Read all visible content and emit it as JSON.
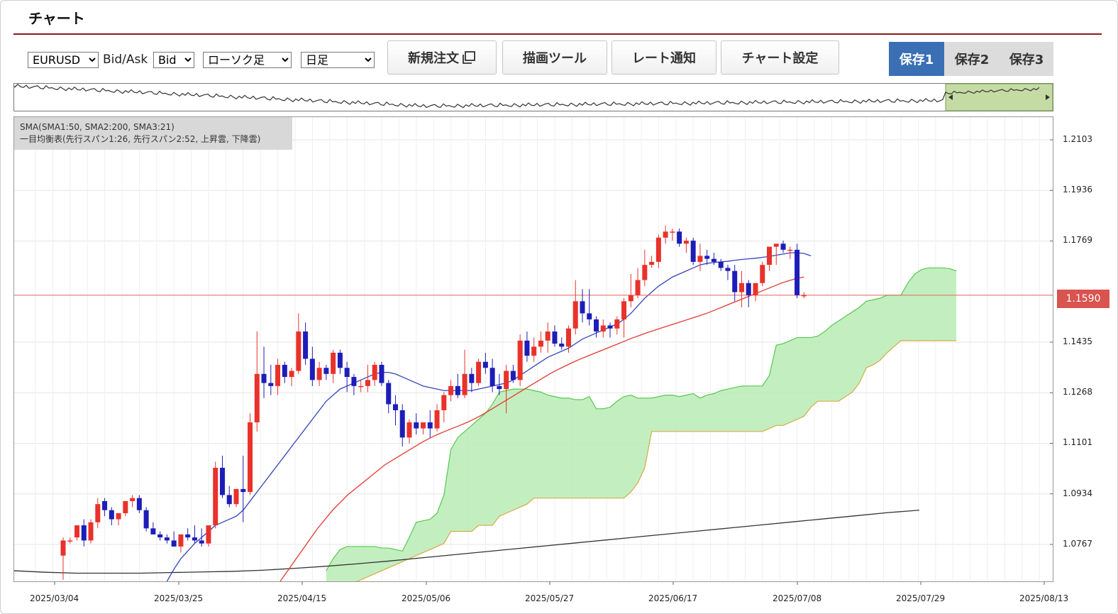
{
  "page": {
    "title": "チャート"
  },
  "toolbar": {
    "symbol": "EURUSD",
    "bidask_label": "Bid/Ask",
    "bidask_value": "Bid",
    "chart_type": "ローソク足",
    "timeframe": "日足",
    "buttons": [
      "新規注文",
      "描画ツール",
      "レート通知",
      "チャート設定"
    ],
    "new_order_icon": "popup-window-icon",
    "saves": [
      "保存1",
      "保存2",
      "保存3"
    ],
    "active_save": 0
  },
  "legend": {
    "line1": "SMA(SMA1:50, SMA2:200, SMA3:21)",
    "line2": "一目均衡表(先行スパン1:26, 先行スパン2:52, 上昇雲, 下降雲)"
  },
  "colors": {
    "up_candle": "#e8322b",
    "down_candle": "#1d1db8",
    "sma21": "#3344bb",
    "sma50": "#e03a30",
    "sma200": "#333333",
    "cloud_fill": "#b8ecb5",
    "span1": "#55c84f",
    "span2": "#d9a842",
    "price_line": "#e56a5e",
    "save_active": "#3a6fb4"
  },
  "chart_data": {
    "type": "candlestick",
    "current_price": "1.1590",
    "y_ticks": [
      "1.2103",
      "1.1936",
      "1.1769",
      "1.1590",
      "1.1435",
      "1.1268",
      "1.1101",
      "1.0934",
      "1.0767"
    ],
    "x_ticks": [
      "2025/03/04",
      "2025/03/25",
      "2025/04/15",
      "2025/05/06",
      "2025/05/27",
      "2025/06/17",
      "2025/07/08",
      "2025/07/29",
      "2025/08/13"
    ],
    "ylim": [
      1.0645,
      1.2178
    ],
    "candles": [
      [
        1.073,
        1.079,
        1.065,
        1.078
      ],
      [
        1.078,
        1.079,
        1.077,
        1.078
      ],
      [
        1.079,
        1.083,
        1.078,
        1.083
      ],
      [
        1.083,
        1.085,
        1.076,
        1.078
      ],
      [
        1.078,
        1.085,
        1.077,
        1.084
      ],
      [
        1.084,
        1.092,
        1.082,
        1.09
      ],
      [
        1.091,
        1.092,
        1.086,
        1.088
      ],
      [
        1.088,
        1.089,
        1.083,
        1.085
      ],
      [
        1.085,
        1.087,
        1.083,
        1.087
      ],
      [
        1.087,
        1.091,
        1.086,
        1.091
      ],
      [
        1.091,
        1.093,
        1.089,
        1.092
      ],
      [
        1.092,
        1.093,
        1.087,
        1.088
      ],
      [
        1.088,
        1.089,
        1.081,
        1.082
      ],
      [
        1.082,
        1.084,
        1.08,
        1.08
      ],
      [
        1.08,
        1.081,
        1.078,
        1.079
      ],
      [
        1.079,
        1.08,
        1.077,
        1.078
      ],
      [
        1.078,
        1.081,
        1.076,
        1.076
      ],
      [
        1.076,
        1.08,
        1.074,
        1.08
      ],
      [
        1.08,
        1.082,
        1.078,
        1.079
      ],
      [
        1.079,
        1.083,
        1.077,
        1.078
      ],
      [
        1.078,
        1.082,
        1.076,
        1.077
      ],
      [
        1.077,
        1.083,
        1.076,
        1.083
      ],
      [
        1.083,
        1.104,
        1.082,
        1.102
      ],
      [
        1.102,
        1.106,
        1.092,
        1.093
      ],
      [
        1.093,
        1.096,
        1.089,
        1.09
      ],
      [
        1.09,
        1.095,
        1.089,
        1.095
      ],
      [
        1.095,
        1.106,
        1.084,
        1.094
      ],
      [
        1.094,
        1.12,
        1.093,
        1.117
      ],
      [
        1.117,
        1.147,
        1.114,
        1.133
      ],
      [
        1.133,
        1.142,
        1.125,
        1.13
      ],
      [
        1.13,
        1.136,
        1.126,
        1.129
      ],
      [
        1.129,
        1.138,
        1.126,
        1.136
      ],
      [
        1.136,
        1.137,
        1.13,
        1.132
      ],
      [
        1.132,
        1.135,
        1.129,
        1.134
      ],
      [
        1.134,
        1.153,
        1.133,
        1.147
      ],
      [
        1.147,
        1.15,
        1.136,
        1.138
      ],
      [
        1.138,
        1.142,
        1.129,
        1.131
      ],
      [
        1.131,
        1.137,
        1.129,
        1.135
      ],
      [
        1.135,
        1.136,
        1.131,
        1.133
      ],
      [
        1.133,
        1.141,
        1.13,
        1.14
      ],
      [
        1.14,
        1.141,
        1.133,
        1.135
      ],
      [
        1.135,
        1.137,
        1.127,
        1.132
      ],
      [
        1.132,
        1.133,
        1.126,
        1.129
      ],
      [
        1.129,
        1.131,
        1.127,
        1.129
      ],
      [
        1.129,
        1.136,
        1.127,
        1.131
      ],
      [
        1.131,
        1.137,
        1.129,
        1.136
      ],
      [
        1.136,
        1.137,
        1.129,
        1.13
      ],
      [
        1.13,
        1.131,
        1.12,
        1.123
      ],
      [
        1.123,
        1.126,
        1.116,
        1.121
      ],
      [
        1.121,
        1.123,
        1.109,
        1.112
      ],
      [
        1.112,
        1.118,
        1.11,
        1.117
      ],
      [
        1.117,
        1.12,
        1.113,
        1.115
      ],
      [
        1.115,
        1.117,
        1.113,
        1.117
      ],
      [
        1.117,
        1.121,
        1.112,
        1.115
      ],
      [
        1.115,
        1.123,
        1.114,
        1.121
      ],
      [
        1.121,
        1.127,
        1.117,
        1.126
      ],
      [
        1.126,
        1.131,
        1.124,
        1.129
      ],
      [
        1.129,
        1.133,
        1.125,
        1.126
      ],
      [
        1.126,
        1.141,
        1.125,
        1.133
      ],
      [
        1.133,
        1.135,
        1.127,
        1.13
      ],
      [
        1.13,
        1.138,
        1.129,
        1.137
      ],
      [
        1.137,
        1.14,
        1.133,
        1.135
      ],
      [
        1.135,
        1.138,
        1.127,
        1.129
      ],
      [
        1.129,
        1.133,
        1.126,
        1.128
      ],
      [
        1.128,
        1.136,
        1.12,
        1.134
      ],
      [
        1.134,
        1.136,
        1.13,
        1.131
      ],
      [
        1.131,
        1.146,
        1.129,
        1.144
      ],
      [
        1.144,
        1.147,
        1.137,
        1.139
      ],
      [
        1.139,
        1.145,
        1.137,
        1.142
      ],
      [
        1.142,
        1.147,
        1.14,
        1.144
      ],
      [
        1.144,
        1.15,
        1.14,
        1.147
      ],
      [
        1.147,
        1.149,
        1.142,
        1.143
      ],
      [
        1.143,
        1.145,
        1.141,
        1.142
      ],
      [
        1.142,
        1.149,
        1.14,
        1.148
      ],
      [
        1.148,
        1.164,
        1.146,
        1.157
      ],
      [
        1.157,
        1.161,
        1.15,
        1.153
      ],
      [
        1.153,
        1.161,
        1.149,
        1.151
      ],
      [
        1.151,
        1.152,
        1.145,
        1.147
      ],
      [
        1.147,
        1.151,
        1.145,
        1.149
      ],
      [
        1.149,
        1.15,
        1.145,
        1.148
      ],
      [
        1.148,
        1.152,
        1.146,
        1.151
      ],
      [
        1.151,
        1.158,
        1.145,
        1.157
      ],
      [
        1.157,
        1.166,
        1.155,
        1.159
      ],
      [
        1.159,
        1.168,
        1.158,
        1.164
      ],
      [
        1.164,
        1.174,
        1.162,
        1.169
      ],
      [
        1.169,
        1.172,
        1.168,
        1.17
      ],
      [
        1.17,
        1.179,
        1.168,
        1.178
      ],
      [
        1.178,
        1.182,
        1.176,
        1.18
      ],
      [
        1.18,
        1.181,
        1.177,
        1.18
      ],
      [
        1.18,
        1.181,
        1.175,
        1.176
      ],
      [
        1.176,
        1.178,
        1.173,
        1.177
      ],
      [
        1.177,
        1.178,
        1.169,
        1.17
      ],
      [
        1.17,
        1.176,
        1.167,
        1.172
      ],
      [
        1.172,
        1.174,
        1.169,
        1.171
      ],
      [
        1.171,
        1.173,
        1.169,
        1.17
      ],
      [
        1.17,
        1.171,
        1.167,
        1.168
      ],
      [
        1.168,
        1.169,
        1.164,
        1.167
      ],
      [
        1.167,
        1.169,
        1.157,
        1.16
      ],
      [
        1.16,
        1.167,
        1.155,
        1.163
      ],
      [
        1.163,
        1.164,
        1.155,
        1.159
      ],
      [
        1.159,
        1.163,
        1.157,
        1.163
      ],
      [
        1.163,
        1.17,
        1.162,
        1.169
      ],
      [
        1.169,
        1.175,
        1.167,
        1.175
      ],
      [
        1.175,
        1.176,
        1.169,
        1.176
      ],
      [
        1.176,
        1.177,
        1.173,
        1.174
      ],
      [
        1.174,
        1.175,
        1.171,
        1.174
      ],
      [
        1.174,
        1.176,
        1.158,
        1.159
      ],
      [
        1.159,
        1.16,
        1.158,
        1.159
      ]
    ],
    "sma21": [
      null,
      null,
      null,
      null,
      null,
      null,
      null,
      null,
      null,
      null,
      null,
      null,
      null,
      null,
      null,
      1.0645,
      1.0685,
      1.072,
      1.0745,
      1.077,
      1.079,
      1.081,
      1.083,
      1.084,
      1.085,
      1.086,
      1.088,
      1.091,
      1.094,
      1.097,
      1.1,
      1.103,
      1.106,
      1.109,
      1.112,
      1.115,
      1.118,
      1.121,
      1.124,
      1.126,
      1.128,
      1.129,
      1.13,
      1.131,
      1.132,
      1.133,
      1.1335,
      1.1335,
      1.133,
      1.132,
      1.131,
      1.13,
      1.129,
      1.1285,
      1.128,
      1.1275,
      1.1275,
      1.1275,
      1.1275,
      1.1275,
      1.128,
      1.1285,
      1.129,
      1.1295,
      1.13,
      1.131,
      1.1325,
      1.134,
      1.1355,
      1.137,
      1.1385,
      1.1395,
      1.1405,
      1.1415,
      1.143,
      1.1445,
      1.1455,
      1.1465,
      1.1475,
      1.1485,
      1.1495,
      1.151,
      1.153,
      1.1555,
      1.158,
      1.16,
      1.162,
      1.1635,
      1.165,
      1.166,
      1.167,
      1.168,
      1.169,
      1.1695,
      1.1698,
      1.17,
      1.1702,
      1.1705,
      1.1708,
      1.171,
      1.1712,
      1.1715,
      1.1718,
      1.1722,
      1.1726,
      1.173,
      1.173,
      1.1728,
      1.172
    ],
    "sma50": {
      "from": 38,
      "start": 1.0645,
      "points": [
        1.0645,
        1.068,
        1.0715,
        1.075,
        1.0785,
        1.082,
        1.085,
        1.088,
        1.0905,
        1.093,
        1.095,
        1.097,
        1.099,
        1.101,
        1.103,
        1.1045,
        1.106,
        1.1075,
        1.109,
        1.1105,
        1.1118,
        1.113,
        1.114,
        1.115,
        1.116,
        1.117,
        1.1182,
        1.1195,
        1.121,
        1.1225,
        1.124,
        1.1255,
        1.127,
        1.1285,
        1.13,
        1.1315,
        1.133,
        1.1343,
        1.1355,
        1.1367,
        1.1378,
        1.1388,
        1.1398,
        1.1408,
        1.1418,
        1.1428,
        1.1438,
        1.1448,
        1.1457,
        1.1466,
        1.1474,
        1.1482,
        1.149,
        1.1498,
        1.1506,
        1.1514,
        1.1522,
        1.153,
        1.154,
        1.155,
        1.156,
        1.157,
        1.158,
        1.159,
        1.16,
        1.161,
        1.162,
        1.163,
        1.1638,
        1.1645,
        1.165
      ]
    },
    "sma200": {
      "start": 1.068,
      "points": [
        1.068,
        1.0675,
        1.0672,
        1.0672,
        1.0672,
        1.0674,
        1.0676,
        1.0678,
        1.0682,
        1.0688,
        1.0695,
        1.0703,
        1.0712,
        1.0722,
        1.0732,
        1.0742,
        1.0752,
        1.0762,
        1.0772,
        1.0782,
        1.0792,
        1.0802,
        1.0812,
        1.0822,
        1.0832,
        1.0842,
        1.0852,
        1.0862,
        1.0872,
        1.088
      ]
    },
    "span1": [
      null,
      null,
      null,
      null,
      null,
      null,
      null,
      null,
      null,
      null,
      null,
      null,
      null,
      null,
      null,
      null,
      null,
      null,
      null,
      null,
      null,
      null,
      null,
      null,
      null,
      null,
      null,
      null,
      null,
      null,
      null,
      null,
      null,
      null,
      null,
      null,
      null,
      null,
      1.068,
      1.072,
      1.075,
      1.076,
      1.076,
      1.076,
      1.076,
      1.076,
      1.0755,
      1.0755,
      1.075,
      1.0745,
      1.079,
      1.084,
      1.0845,
      1.085,
      1.087,
      1.093,
      1.108,
      1.112,
      1.114,
      1.116,
      1.118,
      1.12,
      1.123,
      1.127,
      1.1275,
      1.128,
      1.128,
      1.128,
      1.1275,
      1.127,
      1.126,
      1.1255,
      1.125,
      1.125,
      1.1245,
      1.1245,
      1.1255,
      1.1215,
      1.1215,
      1.122,
      1.124,
      1.1255,
      1.126,
      1.125,
      1.125,
      1.125,
      1.1255,
      1.126,
      1.126,
      1.1255,
      1.126,
      1.1265,
      1.125,
      1.126,
      1.1265,
      1.1275,
      1.128,
      1.1285,
      1.129,
      1.129,
      1.129,
      1.129,
      1.1325,
      1.1425,
      1.143,
      1.144,
      1.145,
      1.145,
      1.145,
      1.1455,
      1.147,
      1.149,
      1.1505,
      1.152,
      1.1535,
      1.155,
      1.157,
      1.1575,
      1.158,
      1.159,
      1.159,
      1.159,
      1.163,
      1.166,
      1.1675,
      1.168,
      1.168,
      1.168,
      1.1678,
      1.167
    ],
    "span2": [
      null,
      null,
      null,
      null,
      null,
      null,
      null,
      null,
      null,
      null,
      null,
      null,
      null,
      null,
      null,
      null,
      null,
      null,
      null,
      null,
      null,
      null,
      null,
      null,
      null,
      null,
      null,
      null,
      null,
      null,
      null,
      null,
      null,
      null,
      null,
      null,
      null,
      null,
      1.0598,
      1.061,
      1.062,
      1.063,
      1.064,
      1.065,
      1.066,
      1.067,
      1.068,
      1.069,
      1.07,
      1.071,
      1.072,
      1.073,
      1.074,
      1.075,
      1.076,
      1.077,
      1.081,
      1.081,
      1.081,
      1.081,
      1.083,
      1.083,
      1.083,
      1.086,
      1.087,
      1.088,
      1.089,
      1.09,
      1.092,
      1.092,
      1.092,
      1.092,
      1.092,
      1.092,
      1.092,
      1.092,
      1.092,
      1.092,
      1.092,
      1.092,
      1.092,
      1.092,
      1.094,
      1.097,
      1.102,
      1.114,
      1.114,
      1.114,
      1.114,
      1.114,
      1.114,
      1.114,
      1.114,
      1.114,
      1.114,
      1.114,
      1.114,
      1.114,
      1.114,
      1.114,
      1.114,
      1.114,
      1.115,
      1.116,
      1.116,
      1.117,
      1.118,
      1.119,
      1.122,
      1.124,
      1.124,
      1.124,
      1.124,
      1.1255,
      1.127,
      1.13,
      1.135,
      1.136,
      1.1375,
      1.14,
      1.142,
      1.144,
      1.144,
      1.144,
      1.144,
      1.144,
      1.144,
      1.144,
      1.144,
      1.144,
      1.144,
      1.144,
      1.144,
      1.144,
      1.144
    ]
  }
}
